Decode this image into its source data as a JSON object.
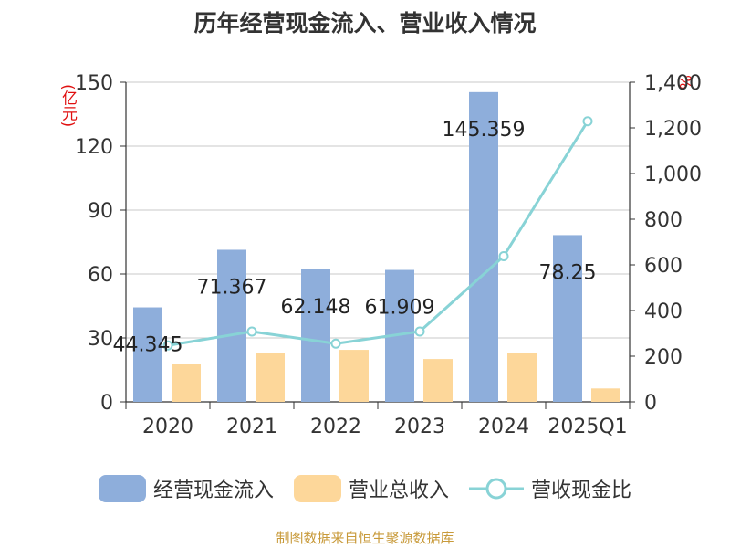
{
  "chart_data": {
    "type": "bar",
    "title": "历年经营现金流入、营业收入情况",
    "left_unit": "(亿元)",
    "right_unit": "%",
    "categories": [
      "2020",
      "2021",
      "2022",
      "2023",
      "2024",
      "2025Q1"
    ],
    "ylim_left": [
      0,
      150
    ],
    "yticks_left": [
      0,
      30,
      60,
      90,
      120,
      150
    ],
    "ylim_right": [
      0,
      1400
    ],
    "yticks_right": [
      0,
      200,
      400,
      600,
      800,
      1000,
      1200,
      1400
    ],
    "yticks_right_labels": [
      "0",
      "200",
      "400",
      "600",
      "800",
      "1,000",
      "1,200",
      "1,400"
    ],
    "grid": true,
    "legend_position": "bottom",
    "series": [
      {
        "name": "经营现金流入",
        "kind": "bar",
        "axis": "left",
        "color": "#8eaedb",
        "values": [
          44.345,
          71.367,
          62.148,
          61.909,
          145.359,
          78.25
        ],
        "labels": [
          "44.345",
          "71.367",
          "62.148",
          "61.909",
          "145.359",
          "78.25"
        ]
      },
      {
        "name": "营业总收入",
        "kind": "bar",
        "axis": "left",
        "color": "#fdd79a",
        "values": [
          17.8,
          23.1,
          24.4,
          20.1,
          22.8,
          6.3
        ]
      },
      {
        "name": "营收现金比",
        "kind": "line",
        "axis": "right",
        "color": "#88d3d6",
        "values": [
          247,
          308,
          255,
          308,
          638,
          1229
        ]
      }
    ]
  },
  "footer": "制图数据来自恒生聚源数据库"
}
